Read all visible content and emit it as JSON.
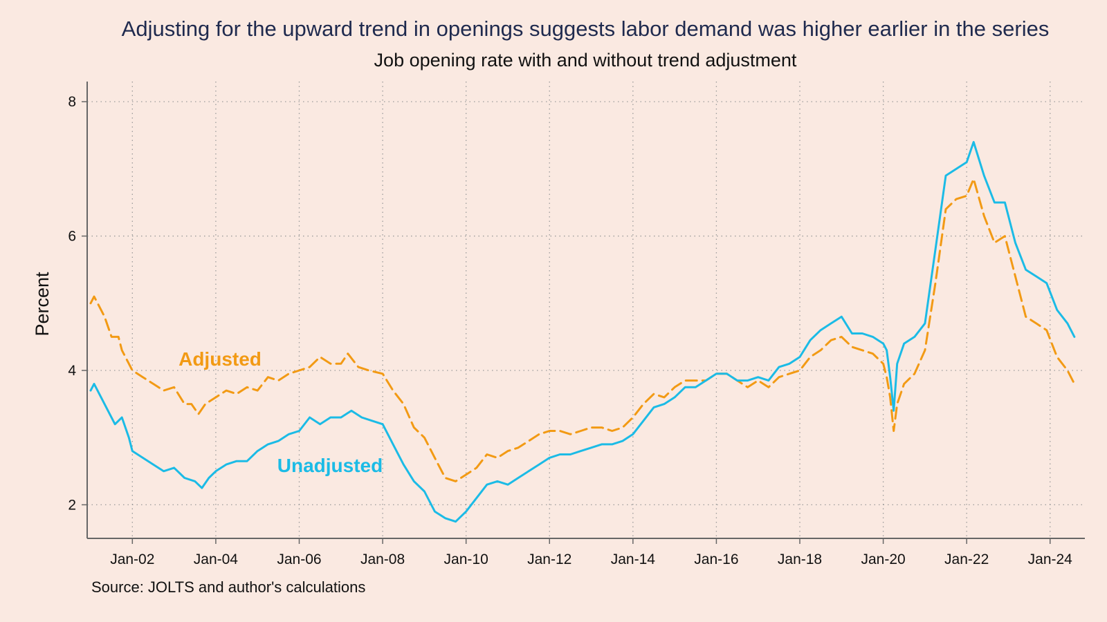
{
  "header": {
    "title": "Adjusting for the upward trend in openings suggests labor demand was higher earlier in the series",
    "subtitle": "Job opening rate with and without trend adjustment"
  },
  "footer": {
    "note": "Source: JOLTS and author's calculations"
  },
  "colors": {
    "background": "#fae9e1",
    "adjusted": "#f29a14",
    "unadjusted": "#1bbbe6",
    "title": "#1f2a4e",
    "axis": "#666666",
    "grid": "#9a9a9a"
  },
  "chart_data": {
    "type": "line",
    "title": "Adjusting for the upward trend in openings suggests labor demand was higher earlier in the series",
    "subtitle": "Job opening rate with and without trend adjustment",
    "xlabel": "",
    "ylabel": "Percent",
    "xlim": [
      "2000-12",
      "2024-11"
    ],
    "ylim": [
      1.5,
      8.3
    ],
    "x_ticks": [
      "Jan-02",
      "Jan-04",
      "Jan-06",
      "Jan-08",
      "Jan-10",
      "Jan-12",
      "Jan-14",
      "Jan-16",
      "Jan-18",
      "Jan-20",
      "Jan-22",
      "Jan-24"
    ],
    "y_ticks": [
      2,
      4,
      6,
      8
    ],
    "grid": true,
    "legend": "inline labels",
    "series": [
      {
        "name": "Adjusted",
        "style": "dashed",
        "label_position": "above line, mid-2002",
        "points": [
          [
            "2001-01",
            5.0
          ],
          [
            "2001-02",
            5.1
          ],
          [
            "2001-03",
            5.0
          ],
          [
            "2001-05",
            4.8
          ],
          [
            "2001-07",
            4.5
          ],
          [
            "2001-09",
            4.5
          ],
          [
            "2001-10",
            4.3
          ],
          [
            "2001-12",
            4.1
          ],
          [
            "2002-01",
            4.0
          ],
          [
            "2002-04",
            3.9
          ],
          [
            "2002-07",
            3.8
          ],
          [
            "2002-10",
            3.7
          ],
          [
            "2003-01",
            3.75
          ],
          [
            "2003-04",
            3.5
          ],
          [
            "2003-06",
            3.5
          ],
          [
            "2003-08",
            3.35
          ],
          [
            "2003-10",
            3.5
          ],
          [
            "2004-01",
            3.6
          ],
          [
            "2004-04",
            3.7
          ],
          [
            "2004-07",
            3.65
          ],
          [
            "2004-10",
            3.75
          ],
          [
            "2005-01",
            3.7
          ],
          [
            "2005-04",
            3.9
          ],
          [
            "2005-07",
            3.85
          ],
          [
            "2005-10",
            3.95
          ],
          [
            "2006-01",
            4.0
          ],
          [
            "2006-04",
            4.05
          ],
          [
            "2006-07",
            4.2
          ],
          [
            "2006-10",
            4.1
          ],
          [
            "2007-01",
            4.1
          ],
          [
            "2007-03",
            4.25
          ],
          [
            "2007-06",
            4.05
          ],
          [
            "2007-09",
            4.0
          ],
          [
            "2008-01",
            3.95
          ],
          [
            "2008-04",
            3.7
          ],
          [
            "2008-07",
            3.5
          ],
          [
            "2008-10",
            3.15
          ],
          [
            "2009-01",
            3.0
          ],
          [
            "2009-04",
            2.7
          ],
          [
            "2009-07",
            2.4
          ],
          [
            "2009-10",
            2.35
          ],
          [
            "2010-01",
            2.45
          ],
          [
            "2010-04",
            2.55
          ],
          [
            "2010-07",
            2.75
          ],
          [
            "2010-10",
            2.7
          ],
          [
            "2011-01",
            2.8
          ],
          [
            "2011-04",
            2.85
          ],
          [
            "2011-07",
            2.95
          ],
          [
            "2011-10",
            3.05
          ],
          [
            "2012-01",
            3.1
          ],
          [
            "2012-04",
            3.1
          ],
          [
            "2012-07",
            3.05
          ],
          [
            "2012-10",
            3.1
          ],
          [
            "2013-01",
            3.15
          ],
          [
            "2013-04",
            3.15
          ],
          [
            "2013-07",
            3.1
          ],
          [
            "2013-10",
            3.15
          ],
          [
            "2014-01",
            3.3
          ],
          [
            "2014-04",
            3.5
          ],
          [
            "2014-07",
            3.65
          ],
          [
            "2014-10",
            3.6
          ],
          [
            "2015-01",
            3.75
          ],
          [
            "2015-04",
            3.85
          ],
          [
            "2015-07",
            3.85
          ],
          [
            "2015-10",
            3.85
          ],
          [
            "2016-01",
            3.95
          ],
          [
            "2016-04",
            3.95
          ],
          [
            "2016-07",
            3.85
          ],
          [
            "2016-10",
            3.75
          ],
          [
            "2017-01",
            3.85
          ],
          [
            "2017-04",
            3.75
          ],
          [
            "2017-07",
            3.9
          ],
          [
            "2017-10",
            3.95
          ],
          [
            "2018-01",
            4.0
          ],
          [
            "2018-04",
            4.2
          ],
          [
            "2018-07",
            4.3
          ],
          [
            "2018-10",
            4.45
          ],
          [
            "2019-01",
            4.5
          ],
          [
            "2019-04",
            4.35
          ],
          [
            "2019-07",
            4.3
          ],
          [
            "2019-10",
            4.25
          ],
          [
            "2020-01",
            4.1
          ],
          [
            "2020-02",
            3.9
          ],
          [
            "2020-03",
            3.6
          ],
          [
            "2020-04",
            3.1
          ],
          [
            "2020-05",
            3.5
          ],
          [
            "2020-07",
            3.8
          ],
          [
            "2020-10",
            3.95
          ],
          [
            "2021-01",
            4.3
          ],
          [
            "2021-04",
            5.3
          ],
          [
            "2021-07",
            6.4
          ],
          [
            "2021-10",
            6.55
          ],
          [
            "2022-01",
            6.6
          ],
          [
            "2022-03",
            6.85
          ],
          [
            "2022-06",
            6.3
          ],
          [
            "2022-09",
            5.9
          ],
          [
            "2022-12",
            6.0
          ],
          [
            "2023-03",
            5.4
          ],
          [
            "2023-06",
            4.8
          ],
          [
            "2023-09",
            4.7
          ],
          [
            "2023-12",
            4.6
          ],
          [
            "2024-03",
            4.2
          ],
          [
            "2024-06",
            4.0
          ],
          [
            "2024-08",
            3.8
          ]
        ]
      },
      {
        "name": "Unadjusted",
        "style": "solid",
        "label_position": "above line, mid-2005",
        "points": [
          [
            "2001-01",
            3.7
          ],
          [
            "2001-02",
            3.8
          ],
          [
            "2001-04",
            3.6
          ],
          [
            "2001-06",
            3.4
          ],
          [
            "2001-08",
            3.2
          ],
          [
            "2001-10",
            3.3
          ],
          [
            "2001-12",
            3.0
          ],
          [
            "2002-01",
            2.8
          ],
          [
            "2002-04",
            2.7
          ],
          [
            "2002-07",
            2.6
          ],
          [
            "2002-10",
            2.5
          ],
          [
            "2003-01",
            2.55
          ],
          [
            "2003-04",
            2.4
          ],
          [
            "2003-07",
            2.35
          ],
          [
            "2003-09",
            2.25
          ],
          [
            "2003-11",
            2.4
          ],
          [
            "2004-01",
            2.5
          ],
          [
            "2004-04",
            2.6
          ],
          [
            "2004-07",
            2.65
          ],
          [
            "2004-10",
            2.65
          ],
          [
            "2005-01",
            2.8
          ],
          [
            "2005-04",
            2.9
          ],
          [
            "2005-07",
            2.95
          ],
          [
            "2005-10",
            3.05
          ],
          [
            "2006-01",
            3.1
          ],
          [
            "2006-04",
            3.3
          ],
          [
            "2006-07",
            3.2
          ],
          [
            "2006-10",
            3.3
          ],
          [
            "2007-01",
            3.3
          ],
          [
            "2007-04",
            3.4
          ],
          [
            "2007-07",
            3.3
          ],
          [
            "2007-10",
            3.25
          ],
          [
            "2008-01",
            3.2
          ],
          [
            "2008-04",
            2.9
          ],
          [
            "2008-07",
            2.6
          ],
          [
            "2008-10",
            2.35
          ],
          [
            "2009-01",
            2.2
          ],
          [
            "2009-04",
            1.9
          ],
          [
            "2009-07",
            1.8
          ],
          [
            "2009-10",
            1.75
          ],
          [
            "2010-01",
            1.9
          ],
          [
            "2010-04",
            2.1
          ],
          [
            "2010-07",
            2.3
          ],
          [
            "2010-10",
            2.35
          ],
          [
            "2011-01",
            2.3
          ],
          [
            "2011-04",
            2.4
          ],
          [
            "2011-07",
            2.5
          ],
          [
            "2011-10",
            2.6
          ],
          [
            "2012-01",
            2.7
          ],
          [
            "2012-04",
            2.75
          ],
          [
            "2012-07",
            2.75
          ],
          [
            "2012-10",
            2.8
          ],
          [
            "2013-01",
            2.85
          ],
          [
            "2013-04",
            2.9
          ],
          [
            "2013-07",
            2.9
          ],
          [
            "2013-10",
            2.95
          ],
          [
            "2014-01",
            3.05
          ],
          [
            "2014-04",
            3.25
          ],
          [
            "2014-07",
            3.45
          ],
          [
            "2014-10",
            3.5
          ],
          [
            "2015-01",
            3.6
          ],
          [
            "2015-04",
            3.75
          ],
          [
            "2015-07",
            3.75
          ],
          [
            "2015-10",
            3.85
          ],
          [
            "2016-01",
            3.95
          ],
          [
            "2016-04",
            3.95
          ],
          [
            "2016-07",
            3.85
          ],
          [
            "2016-10",
            3.85
          ],
          [
            "2017-01",
            3.9
          ],
          [
            "2017-04",
            3.85
          ],
          [
            "2017-07",
            4.05
          ],
          [
            "2017-10",
            4.1
          ],
          [
            "2018-01",
            4.2
          ],
          [
            "2018-04",
            4.45
          ],
          [
            "2018-07",
            4.6
          ],
          [
            "2018-10",
            4.7
          ],
          [
            "2019-01",
            4.8
          ],
          [
            "2019-04",
            4.55
          ],
          [
            "2019-07",
            4.55
          ],
          [
            "2019-10",
            4.5
          ],
          [
            "2020-01",
            4.4
          ],
          [
            "2020-02",
            4.3
          ],
          [
            "2020-03",
            3.9
          ],
          [
            "2020-04",
            3.4
          ],
          [
            "2020-05",
            4.1
          ],
          [
            "2020-07",
            4.4
          ],
          [
            "2020-10",
            4.5
          ],
          [
            "2021-01",
            4.7
          ],
          [
            "2021-04",
            5.8
          ],
          [
            "2021-07",
            6.9
          ],
          [
            "2021-10",
            7.0
          ],
          [
            "2022-01",
            7.1
          ],
          [
            "2022-03",
            7.4
          ],
          [
            "2022-06",
            6.9
          ],
          [
            "2022-09",
            6.5
          ],
          [
            "2022-12",
            6.5
          ],
          [
            "2023-03",
            5.9
          ],
          [
            "2023-06",
            5.5
          ],
          [
            "2023-09",
            5.4
          ],
          [
            "2023-12",
            5.3
          ],
          [
            "2024-03",
            4.9
          ],
          [
            "2024-06",
            4.7
          ],
          [
            "2024-08",
            4.5
          ]
        ]
      }
    ]
  }
}
